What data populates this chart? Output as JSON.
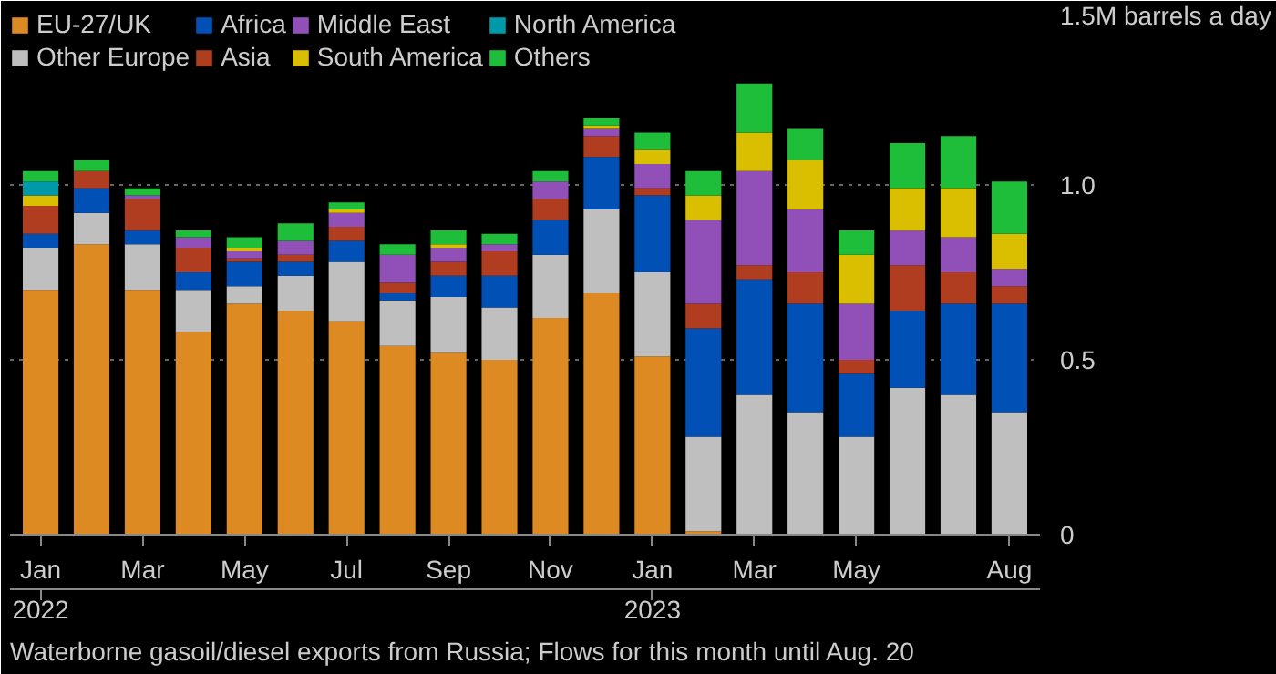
{
  "chart_data": {
    "type": "bar",
    "stacked": true,
    "categories": [
      "Jan\n2022",
      null,
      "Mar",
      null,
      "May",
      null,
      "Jul",
      null,
      "Sep",
      null,
      "Nov",
      null,
      "Jan\n2023",
      null,
      "Mar",
      null,
      "May",
      null,
      null,
      "Aug"
    ],
    "series": [
      {
        "name": "EU-27/UK",
        "color": "#dd8a22",
        "values": [
          0.7,
          0.83,
          0.7,
          0.58,
          0.66,
          0.64,
          0.61,
          0.54,
          0.52,
          0.5,
          0.62,
          0.69,
          0.51,
          0.01,
          0,
          0,
          0,
          0,
          0,
          0
        ]
      },
      {
        "name": "Other Europe",
        "color": "#bfbfbf",
        "values": [
          0.12,
          0.09,
          0.13,
          0.12,
          0.05,
          0.1,
          0.17,
          0.13,
          0.16,
          0.15,
          0.18,
          0.24,
          0.24,
          0.27,
          0.4,
          0.35,
          0.28,
          0.42,
          0.4,
          0.35
        ]
      },
      {
        "name": "Africa",
        "color": "#0050b5",
        "values": [
          0.04,
          0.07,
          0.04,
          0.05,
          0.07,
          0.04,
          0.06,
          0.02,
          0.06,
          0.09,
          0.1,
          0.15,
          0.22,
          0.31,
          0.33,
          0.31,
          0.18,
          0.22,
          0.26,
          0.31
        ]
      },
      {
        "name": "Asia",
        "color": "#b03d1f",
        "values": [
          0.08,
          0.05,
          0.09,
          0.07,
          0.01,
          0.02,
          0.04,
          0.03,
          0.04,
          0.07,
          0.06,
          0.06,
          0.02,
          0.07,
          0.04,
          0.09,
          0.04,
          0.13,
          0.09,
          0.05
        ]
      },
      {
        "name": "Middle East",
        "color": "#9050b8",
        "values": [
          0,
          0,
          0.01,
          0.03,
          0.02,
          0.04,
          0.04,
          0.08,
          0.04,
          0.02,
          0.05,
          0.02,
          0.07,
          0.24,
          0.27,
          0.18,
          0.16,
          0.1,
          0.1,
          0.05
        ]
      },
      {
        "name": "South America",
        "color": "#d9bf00",
        "values": [
          0.03,
          0,
          0,
          0,
          0.01,
          0,
          0.01,
          0,
          0.01,
          0,
          0,
          0.01,
          0.04,
          0.07,
          0.11,
          0.14,
          0.14,
          0.12,
          0.14,
          0.1
        ]
      },
      {
        "name": "North America",
        "color": "#0099aa",
        "values": [
          0.04,
          0,
          0,
          0,
          0,
          0,
          0,
          0,
          0,
          0,
          0,
          0,
          0,
          0,
          0,
          0,
          0,
          0,
          0,
          0
        ]
      },
      {
        "name": "Others",
        "color": "#1fbe3a",
        "values": [
          0.03,
          0.03,
          0.02,
          0.02,
          0.03,
          0.05,
          0.02,
          0.03,
          0.04,
          0.03,
          0.03,
          0.02,
          0.05,
          0.07,
          0.14,
          0.09,
          0.07,
          0.13,
          0.15,
          0.15
        ]
      }
    ],
    "ylim": [
      0,
      1.5
    ],
    "yticks": [
      0,
      0.5,
      {
        "value": 1.0,
        "label": "1.0"
      },
      {
        "value": 1.5,
        "label": "1.5M barrels a day"
      }
    ],
    "grid": "y",
    "legend": "top",
    "annotations": [
      "Waterborne gasoil/diesel exports from Russia; Flows for this month until Aug. 20"
    ]
  }
}
